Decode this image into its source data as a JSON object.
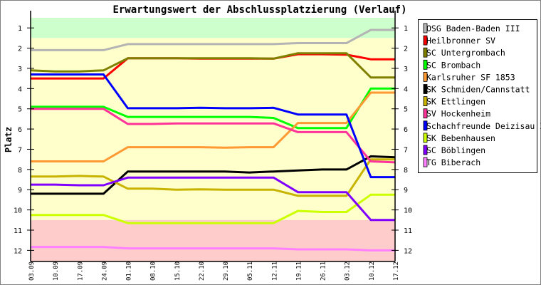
{
  "chart_data": {
    "type": "line",
    "title": "Erwartungswert der Abschlussplatzierung (Verlauf)",
    "xlabel": "",
    "ylabel": "Platz",
    "ylim": [
      0.5,
      12.55
    ],
    "y_inverted": true,
    "yticks": [
      1,
      2,
      3,
      4,
      5,
      6,
      7,
      8,
      9,
      10,
      11,
      12
    ],
    "categories": [
      "03.09",
      "10.09",
      "17.09",
      "24.09",
      "01.10",
      "08.10",
      "15.10",
      "22.10",
      "29.10",
      "05.11",
      "12.11",
      "19.11",
      "26.11",
      "03.12",
      "10.12",
      "17.12"
    ],
    "bands": [
      {
        "name": "promotion",
        "from": 0.5,
        "to": 1.5,
        "color": "#ccffcc"
      },
      {
        "name": "midfield",
        "from": 1.5,
        "to": 10.5,
        "color": "#ffffcc"
      },
      {
        "name": "relegation",
        "from": 10.5,
        "to": 12.55,
        "color": "#ffcccc"
      }
    ],
    "legend_position": "right",
    "series": [
      {
        "name": "OSG Baden-Baden III",
        "color": "#b4b4b4",
        "values": [
          2.1,
          2.1,
          2.1,
          2.1,
          1.8,
          1.8,
          1.8,
          1.8,
          1.8,
          1.8,
          1.8,
          1.75,
          1.75,
          1.75,
          1.1,
          1.1
        ]
      },
      {
        "name": "Heilbronner SV",
        "color": "#ff0000",
        "values": [
          3.5,
          3.5,
          3.5,
          3.5,
          2.5,
          2.5,
          2.5,
          2.52,
          2.52,
          2.52,
          2.52,
          2.3,
          2.3,
          2.32,
          2.55,
          2.55
        ]
      },
      {
        "name": "SC Untergrombach",
        "color": "#808000",
        "values": [
          3.1,
          3.15,
          3.15,
          3.1,
          2.5,
          2.5,
          2.5,
          2.5,
          2.5,
          2.5,
          2.52,
          2.25,
          2.25,
          2.25,
          3.45,
          3.45
        ]
      },
      {
        "name": "SC Brombach",
        "color": "#00ff00",
        "values": [
          4.9,
          4.9,
          4.9,
          4.9,
          5.4,
          5.4,
          5.4,
          5.4,
          5.4,
          5.4,
          5.45,
          5.95,
          5.95,
          5.95,
          4.0,
          4.0
        ]
      },
      {
        "name": "Karlsruher SF 1853",
        "color": "#ff9933",
        "values": [
          7.6,
          7.6,
          7.6,
          7.6,
          6.9,
          6.9,
          6.9,
          6.9,
          6.92,
          6.9,
          6.9,
          5.7,
          5.7,
          5.7,
          4.2,
          4.2
        ]
      },
      {
        "name": "SK Schmiden/Cannstatt",
        "color": "#000000",
        "values": [
          9.2,
          9.2,
          9.2,
          9.2,
          8.1,
          8.1,
          8.1,
          8.1,
          8.1,
          8.15,
          8.1,
          8.05,
          8.0,
          8.0,
          7.35,
          7.4
        ]
      },
      {
        "name": "SK Ettlingen",
        "color": "#c8b400",
        "values": [
          8.35,
          8.35,
          8.32,
          8.35,
          8.95,
          8.95,
          9.0,
          8.98,
          9.0,
          9.0,
          9.0,
          9.3,
          9.3,
          9.3,
          7.5,
          7.5
        ]
      },
      {
        "name": "SV Hockenheim",
        "color": "#ff3399",
        "values": [
          5.0,
          5.0,
          5.0,
          5.0,
          5.75,
          5.75,
          5.72,
          5.72,
          5.72,
          5.72,
          5.72,
          6.15,
          6.15,
          6.15,
          7.6,
          7.65
        ]
      },
      {
        "name": "Schachfreunde Deizisau II",
        "color": "#0000ff",
        "values": [
          3.3,
          3.3,
          3.3,
          3.3,
          4.97,
          4.97,
          4.97,
          4.95,
          4.97,
          4.97,
          4.95,
          5.28,
          5.28,
          5.28,
          8.38,
          8.38
        ]
      },
      {
        "name": "SK Bebenhausen",
        "color": "#ccff00",
        "values": [
          10.25,
          10.25,
          10.25,
          10.25,
          10.65,
          10.65,
          10.65,
          10.65,
          10.65,
          10.65,
          10.65,
          10.05,
          10.1,
          10.1,
          9.25,
          9.25
        ]
      },
      {
        "name": "SC Böblingen",
        "color": "#8000ff",
        "values": [
          8.75,
          8.75,
          8.78,
          8.78,
          8.4,
          8.4,
          8.4,
          8.4,
          8.4,
          8.4,
          8.4,
          9.12,
          9.12,
          9.12,
          10.5,
          10.5
        ]
      },
      {
        "name": "TG Biberach",
        "color": "#ff80ff",
        "values": [
          11.83,
          11.83,
          11.83,
          11.83,
          11.9,
          11.9,
          11.9,
          11.9,
          11.9,
          11.9,
          11.9,
          11.95,
          11.95,
          11.95,
          12.0,
          12.0
        ]
      }
    ]
  }
}
